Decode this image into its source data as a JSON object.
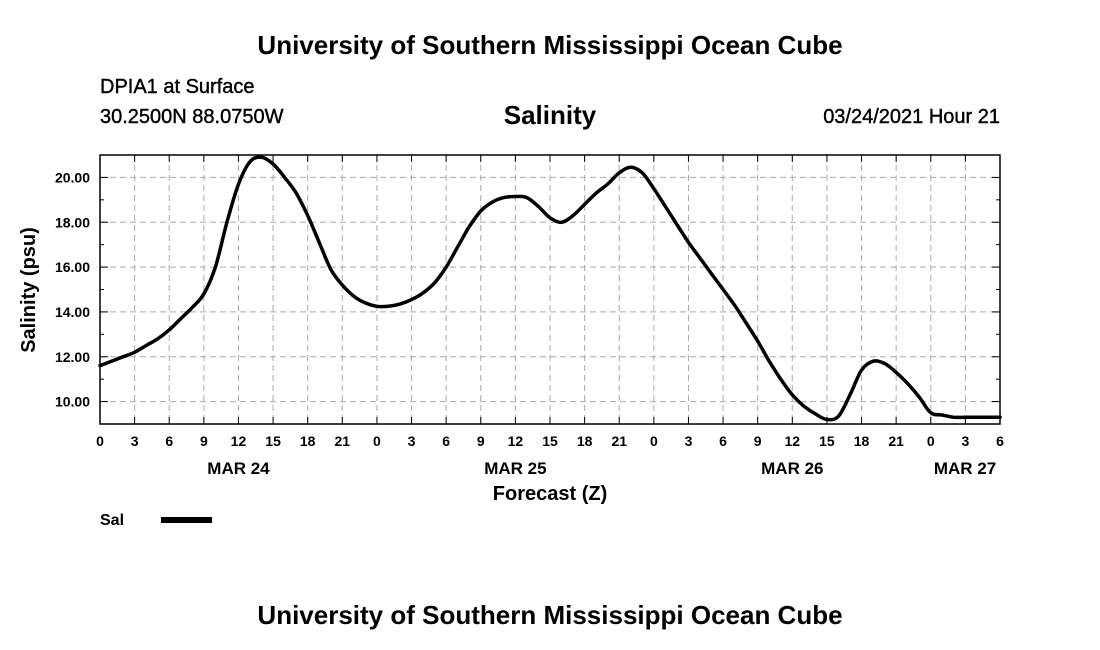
{
  "header": {
    "title": "University of Southern Mississippi Ocean Cube",
    "station": "DPIA1 at Surface",
    "coordinates": "30.2500N 88.0750W",
    "timestamp": "03/24/2021 Hour 21"
  },
  "footer": {
    "title": "University of Southern Mississippi Ocean Cube"
  },
  "colors": {
    "line": "#000000",
    "grid": "#aaaaaa",
    "background": "#ffffff"
  },
  "chart_data": {
    "type": "line",
    "title": "Salinity",
    "xlabel": "Forecast (Z)",
    "ylabel": "Salinity (psu)",
    "xlim": [
      0,
      78
    ],
    "ylim": [
      9.0,
      21.0
    ],
    "grid": true,
    "x_unit": "hours since MAR 24 00Z",
    "x_tick_values": [
      0,
      3,
      6,
      9,
      12,
      15,
      18,
      21,
      24,
      27,
      30,
      33,
      36,
      39,
      42,
      45,
      48,
      51,
      54,
      57,
      60,
      63,
      66,
      69,
      72,
      75,
      78
    ],
    "x_tick_labels": [
      "0",
      "3",
      "6",
      "9",
      "12",
      "15",
      "18",
      "21",
      "0",
      "3",
      "6",
      "9",
      "12",
      "15",
      "18",
      "21",
      "0",
      "3",
      "6",
      "9",
      "12",
      "15",
      "18",
      "21",
      "0",
      "3",
      "6"
    ],
    "date_labels": [
      {
        "x": 12,
        "label": "MAR 24"
      },
      {
        "x": 36,
        "label": "MAR 25"
      },
      {
        "x": 60,
        "label": "MAR 26"
      },
      {
        "x": 78,
        "label": "MAR 27"
      }
    ],
    "y_tick_values": [
      10,
      12,
      14,
      16,
      18,
      20
    ],
    "y_tick_labels": [
      "10.00",
      "12.00",
      "14.00",
      "16.00",
      "18.00",
      "20.00"
    ],
    "y_minor_step": 1,
    "legend": {
      "position": "bottom-left",
      "entries": [
        {
          "label": "Sal"
        }
      ]
    },
    "series": [
      {
        "name": "Sal",
        "x": [
          0,
          1,
          2,
          3,
          4,
          5,
          6,
          7,
          8,
          9,
          10,
          11,
          12,
          13,
          14,
          15,
          16,
          17,
          18,
          19,
          20,
          21,
          22,
          23,
          24,
          25,
          26,
          27,
          28,
          29,
          30,
          31,
          32,
          33,
          34,
          35,
          36,
          37,
          38,
          39,
          40,
          41,
          42,
          43,
          44,
          45,
          46,
          47,
          48,
          49,
          50,
          51,
          52,
          53,
          54,
          55,
          56,
          57,
          58,
          59,
          60,
          61,
          62,
          63,
          64,
          65,
          66,
          67,
          68,
          69,
          70,
          71,
          72,
          73,
          74,
          75,
          76,
          77,
          78
        ],
        "values": [
          11.6,
          11.8,
          12.0,
          12.2,
          12.5,
          12.8,
          13.2,
          13.7,
          14.2,
          14.8,
          16.0,
          18.0,
          19.7,
          20.7,
          20.9,
          20.6,
          20.0,
          19.3,
          18.3,
          17.1,
          15.9,
          15.2,
          14.7,
          14.4,
          14.25,
          14.25,
          14.35,
          14.55,
          14.85,
          15.3,
          16.0,
          16.9,
          17.8,
          18.5,
          18.9,
          19.1,
          19.15,
          19.1,
          18.7,
          18.2,
          18.0,
          18.3,
          18.8,
          19.3,
          19.7,
          20.2,
          20.45,
          20.2,
          19.5,
          18.7,
          17.9,
          17.1,
          16.4,
          15.7,
          15.0,
          14.3,
          13.5,
          12.7,
          11.8,
          11.0,
          10.3,
          9.8,
          9.45,
          9.2,
          9.35,
          10.3,
          11.4,
          11.8,
          11.7,
          11.3,
          10.8,
          10.2,
          9.5,
          9.4,
          9.3,
          9.3,
          9.3,
          9.3,
          9.3
        ]
      }
    ]
  }
}
